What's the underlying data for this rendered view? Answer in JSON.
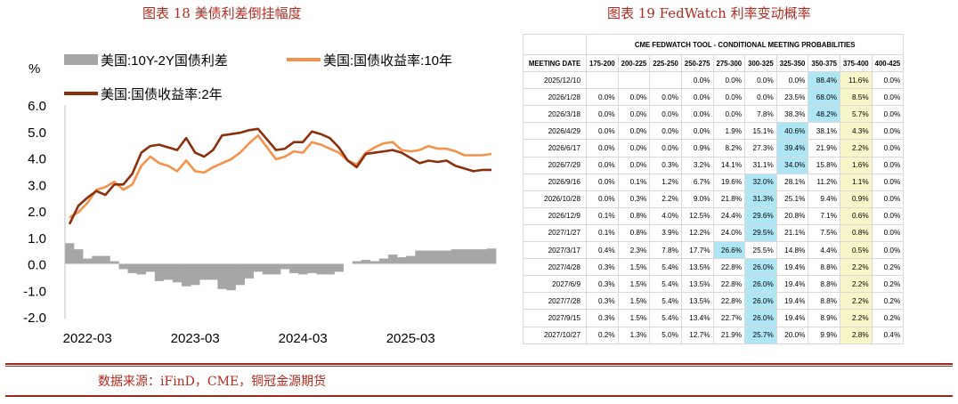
{
  "left_figure": {
    "title": "图表 18 美债利差倒挂幅度"
  },
  "right_figure": {
    "title": "图表 19 FedWatch 利率变动概率"
  },
  "source_note": "数据来源：iFinD，CME，铜冠金源期货",
  "chart_data": [
    {
      "type": "line",
      "title": "",
      "ylabel": "%",
      "ylim": [
        -2.0,
        6.0
      ],
      "yticks": [
        "6.0",
        "5.0",
        "4.0",
        "3.0",
        "2.0",
        "1.0",
        "0.0",
        "-1.0",
        "-2.0"
      ],
      "xticks": [
        {
          "label": "2022-03",
          "x": "2022-03"
        },
        {
          "label": "2023-03",
          "x": "2023-03"
        },
        {
          "label": "2024-03",
          "x": "2024-03"
        },
        {
          "label": "2025-03",
          "x": "2025-03"
        }
      ],
      "xrange": [
        "2022-01",
        "2025-12"
      ],
      "legend_position": "top",
      "grid": false,
      "colors": {
        "spread": "#a6a6a6",
        "y10": "#f4924a",
        "y2": "#8b2f0c"
      },
      "series": [
        {
          "name": "美国:10Y-2Y国债利差",
          "kind": "bar",
          "x": [
            "2022-01",
            "2022-02",
            "2022-03",
            "2022-04",
            "2022-05",
            "2022-06",
            "2022-07",
            "2022-08",
            "2022-09",
            "2022-10",
            "2022-11",
            "2022-12",
            "2023-01",
            "2023-02",
            "2023-03",
            "2023-04",
            "2023-05",
            "2023-06",
            "2023-07",
            "2023-08",
            "2023-09",
            "2023-10",
            "2023-11",
            "2023-12",
            "2024-01",
            "2024-02",
            "2024-03",
            "2024-04",
            "2024-05",
            "2024-06",
            "2024-07",
            "2024-08",
            "2024-09",
            "2024-10",
            "2024-11",
            "2024-12",
            "2025-01",
            "2025-02",
            "2025-03",
            "2025-04",
            "2025-05",
            "2025-06",
            "2025-07",
            "2025-08",
            "2025-09",
            "2025-10",
            "2025-11",
            "2025-12"
          ],
          "values": [
            0.78,
            0.55,
            0.2,
            0.3,
            0.3,
            0.1,
            -0.2,
            -0.35,
            -0.4,
            -0.3,
            -0.65,
            -0.6,
            -0.7,
            -0.85,
            -0.8,
            -0.6,
            -0.6,
            -0.95,
            -1.0,
            -0.8,
            -0.55,
            -0.3,
            -0.4,
            -0.4,
            -0.2,
            -0.35,
            -0.4,
            -0.35,
            -0.4,
            -0.4,
            -0.3,
            0.0,
            0.1,
            0.15,
            0.1,
            0.2,
            0.35,
            0.25,
            0.3,
            0.5,
            0.5,
            0.5,
            0.5,
            0.55,
            0.55,
            0.55,
            0.55,
            0.58
          ]
        },
        {
          "name": "美国:国债收益率:10年",
          "kind": "line",
          "x": [
            "2022-01",
            "2022-02",
            "2022-03",
            "2022-04",
            "2022-05",
            "2022-06",
            "2022-07",
            "2022-08",
            "2022-09",
            "2022-10",
            "2022-11",
            "2022-12",
            "2023-01",
            "2023-02",
            "2023-03",
            "2023-04",
            "2023-05",
            "2023-06",
            "2023-07",
            "2023-08",
            "2023-09",
            "2023-10",
            "2023-11",
            "2023-12",
            "2024-01",
            "2024-02",
            "2024-03",
            "2024-04",
            "2024-05",
            "2024-06",
            "2024-07",
            "2024-08",
            "2024-09",
            "2024-10",
            "2024-11",
            "2024-12",
            "2025-01",
            "2025-02",
            "2025-03",
            "2025-04",
            "2025-05",
            "2025-06",
            "2025-07",
            "2025-08",
            "2025-09",
            "2025-10",
            "2025-11",
            "2025-12"
          ],
          "values": [
            1.75,
            1.95,
            2.3,
            2.8,
            2.9,
            3.1,
            2.8,
            3.0,
            3.7,
            4.05,
            3.8,
            3.7,
            3.5,
            3.9,
            3.5,
            3.45,
            3.65,
            3.8,
            3.95,
            4.2,
            4.55,
            4.85,
            4.4,
            3.95,
            4.05,
            4.25,
            4.2,
            4.6,
            4.5,
            4.35,
            4.2,
            3.9,
            3.75,
            4.2,
            4.4,
            4.55,
            4.6,
            4.3,
            4.25,
            4.3,
            4.45,
            4.35,
            4.35,
            4.25,
            4.1,
            4.1,
            4.1,
            4.15
          ]
        },
        {
          "name": "美国:国债收益率:2年",
          "kind": "line",
          "x": [
            "2022-01",
            "2022-02",
            "2022-03",
            "2022-04",
            "2022-05",
            "2022-06",
            "2022-07",
            "2022-08",
            "2022-09",
            "2022-10",
            "2022-11",
            "2022-12",
            "2023-01",
            "2023-02",
            "2023-03",
            "2023-04",
            "2023-05",
            "2023-06",
            "2023-07",
            "2023-08",
            "2023-09",
            "2023-10",
            "2023-11",
            "2023-12",
            "2024-01",
            "2024-02",
            "2024-03",
            "2024-04",
            "2024-05",
            "2024-06",
            "2024-07",
            "2024-08",
            "2024-09",
            "2024-10",
            "2024-11",
            "2024-12",
            "2025-01",
            "2025-02",
            "2025-03",
            "2025-04",
            "2025-05",
            "2025-06",
            "2025-07",
            "2025-08",
            "2025-09",
            "2025-10",
            "2025-11",
            "2025-12"
          ],
          "values": [
            1.5,
            2.2,
            2.5,
            2.75,
            2.6,
            3.0,
            3.0,
            3.4,
            4.2,
            4.45,
            4.5,
            4.4,
            4.3,
            4.75,
            4.2,
            4.05,
            4.3,
            4.85,
            4.9,
            4.95,
            5.05,
            5.1,
            4.7,
            4.3,
            4.35,
            4.6,
            4.6,
            5.0,
            4.9,
            4.75,
            4.4,
            3.9,
            3.65,
            4.15,
            4.2,
            4.25,
            4.3,
            4.2,
            4.0,
            3.8,
            3.9,
            3.85,
            3.9,
            3.7,
            3.6,
            3.5,
            3.55,
            3.55
          ]
        }
      ]
    },
    {
      "type": "table",
      "title": "CME FEDWATCH TOOL - CONDITIONAL MEETING PROBABILITIES",
      "columns": [
        "MEETING DATE",
        "175-200",
        "200-225",
        "225-250",
        "250-275",
        "275-300",
        "300-325",
        "325-350",
        "350-375",
        "375-400",
        "400-425"
      ],
      "rows": [
        {
          "date": "2025/12/10",
          "values": [
            "",
            "",
            "",
            "0.0%",
            "0.0%",
            "0.0%",
            "0.0%",
            "88.4%",
            "11.6%",
            "0.0%"
          ],
          "max_col": 7,
          "cur_col": 8
        },
        {
          "date": "2026/1/28",
          "values": [
            "0.0%",
            "0.0%",
            "0.0%",
            "0.0%",
            "0.0%",
            "0.0%",
            "23.5%",
            "68.0%",
            "8.5%",
            "0.0%"
          ],
          "max_col": 7,
          "cur_col": 8
        },
        {
          "date": "2026/3/18",
          "values": [
            "0.0%",
            "0.0%",
            "0.0%",
            "0.0%",
            "0.0%",
            "7.8%",
            "38.3%",
            "48.2%",
            "5.7%",
            "0.0%"
          ],
          "max_col": 7,
          "cur_col": 8
        },
        {
          "date": "2026/4/29",
          "values": [
            "0.0%",
            "0.0%",
            "0.0%",
            "0.0%",
            "1.9%",
            "15.1%",
            "40.6%",
            "38.1%",
            "4.3%",
            "0.0%"
          ],
          "max_col": 6,
          "cur_col": 8
        },
        {
          "date": "2026/6/17",
          "values": [
            "0.0%",
            "0.0%",
            "0.0%",
            "0.9%",
            "8.2%",
            "27.3%",
            "39.4%",
            "21.9%",
            "2.2%",
            "0.0%"
          ],
          "max_col": 6,
          "cur_col": 8
        },
        {
          "date": "2026/7/29",
          "values": [
            "0.0%",
            "0.0%",
            "0.3%",
            "3.2%",
            "14.1%",
            "31.1%",
            "34.0%",
            "15.8%",
            "1.6%",
            "0.0%"
          ],
          "max_col": 6,
          "cur_col": 8
        },
        {
          "date": "2026/9/16",
          "values": [
            "0.0%",
            "0.1%",
            "1.2%",
            "6.7%",
            "19.6%",
            "32.0%",
            "28.1%",
            "11.2%",
            "1.1%",
            "0.0%"
          ],
          "max_col": 5,
          "cur_col": 8
        },
        {
          "date": "2026/10/28",
          "values": [
            "0.0%",
            "0.3%",
            "2.2%",
            "9.0%",
            "21.8%",
            "31.3%",
            "25.1%",
            "9.4%",
            "0.9%",
            "0.0%"
          ],
          "max_col": 5,
          "cur_col": 8
        },
        {
          "date": "2026/12/9",
          "values": [
            "0.1%",
            "0.8%",
            "4.0%",
            "12.5%",
            "24.4%",
            "29.6%",
            "20.8%",
            "7.1%",
            "0.6%",
            "0.0%"
          ],
          "max_col": 5,
          "cur_col": 8
        },
        {
          "date": "2027/1/27",
          "values": [
            "0.1%",
            "0.8%",
            "3.9%",
            "12.2%",
            "24.0%",
            "29.5%",
            "21.1%",
            "7.5%",
            "0.8%",
            "0.0%"
          ],
          "max_col": 5,
          "cur_col": 8
        },
        {
          "date": "2027/3/17",
          "values": [
            "0.4%",
            "2.3%",
            "7.8%",
            "17.7%",
            "26.6%",
            "25.5%",
            "14.8%",
            "4.4%",
            "0.5%",
            "0.0%"
          ],
          "max_col": 4,
          "cur_col": 8
        },
        {
          "date": "2027/4/28",
          "values": [
            "0.3%",
            "1.5%",
            "5.4%",
            "13.5%",
            "22.8%",
            "26.0%",
            "19.4%",
            "8.8%",
            "2.2%",
            "0.2%"
          ],
          "max_col": 5,
          "cur_col": 8
        },
        {
          "date": "2027/6/9",
          "values": [
            "0.3%",
            "1.5%",
            "5.4%",
            "13.5%",
            "22.8%",
            "26.0%",
            "19.4%",
            "8.8%",
            "2.2%",
            "0.2%"
          ],
          "max_col": 5,
          "cur_col": 8
        },
        {
          "date": "2027/7/28",
          "values": [
            "0.3%",
            "1.5%",
            "5.4%",
            "13.5%",
            "22.8%",
            "26.0%",
            "19.4%",
            "8.8%",
            "2.2%",
            "0.2%"
          ],
          "max_col": 5,
          "cur_col": 8
        },
        {
          "date": "2027/9/15",
          "values": [
            "0.3%",
            "1.5%",
            "5.4%",
            "13.4%",
            "22.7%",
            "26.0%",
            "19.4%",
            "8.9%",
            "2.2%",
            "0.2%"
          ],
          "max_col": 5,
          "cur_col": 8
        },
        {
          "date": "2027/10/27",
          "values": [
            "0.2%",
            "1.3%",
            "5.0%",
            "12.7%",
            "21.9%",
            "25.7%",
            "20.0%",
            "9.9%",
            "2.8%",
            "0.4%"
          ],
          "max_col": 5,
          "cur_col": 8
        }
      ]
    }
  ]
}
